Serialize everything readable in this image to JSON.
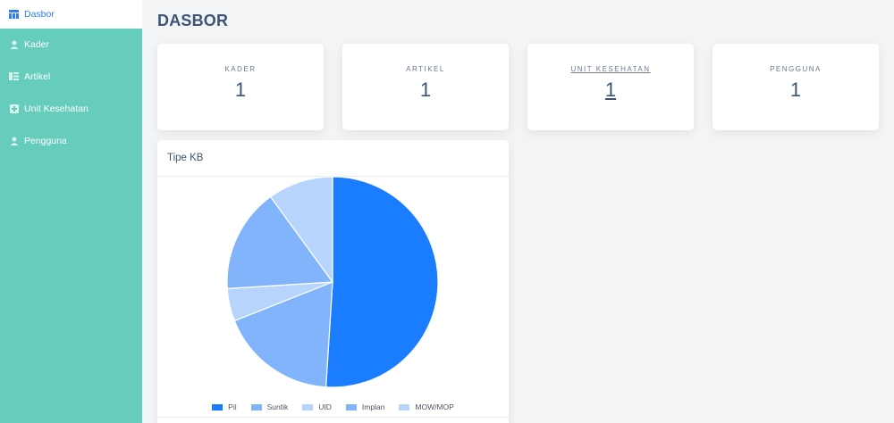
{
  "sidebar": {
    "items": [
      {
        "label": "Dasbor",
        "icon": "table-icon",
        "active": true
      },
      {
        "label": "Kader",
        "icon": "user-icon",
        "active": false
      },
      {
        "label": "Artikel",
        "icon": "article-icon",
        "active": false
      },
      {
        "label": "Unit Kesehatan",
        "icon": "plus-square-icon",
        "active": false
      },
      {
        "label": "Pengguna",
        "icon": "user-icon",
        "active": false
      }
    ]
  },
  "page": {
    "title": "DASBOR"
  },
  "stats": [
    {
      "label": "KADER",
      "value": "1"
    },
    {
      "label": "ARTIKEL",
      "value": "1"
    },
    {
      "label": "UNIT KESEHATAN",
      "value": "1"
    },
    {
      "label": "PENGGUNA",
      "value": "1"
    }
  ],
  "chart_card": {
    "title": "Tipe KB"
  },
  "chart_data": {
    "type": "pie",
    "title": "Tipe KB",
    "legend_position": "bottom",
    "labels": [
      "Pil",
      "Suntik",
      "UID",
      "Implan",
      "MOW/MOP"
    ],
    "values": [
      51,
      18,
      5,
      16,
      10
    ],
    "colors": [
      "#1a7cff",
      "#82b4fc",
      "#b7d4fd",
      "#82b4fc",
      "#b7d4fd"
    ]
  },
  "colors": {
    "sidebar": "#66cdbd",
    "active_text": "#2f80ed",
    "title_text": "#3e5475"
  }
}
